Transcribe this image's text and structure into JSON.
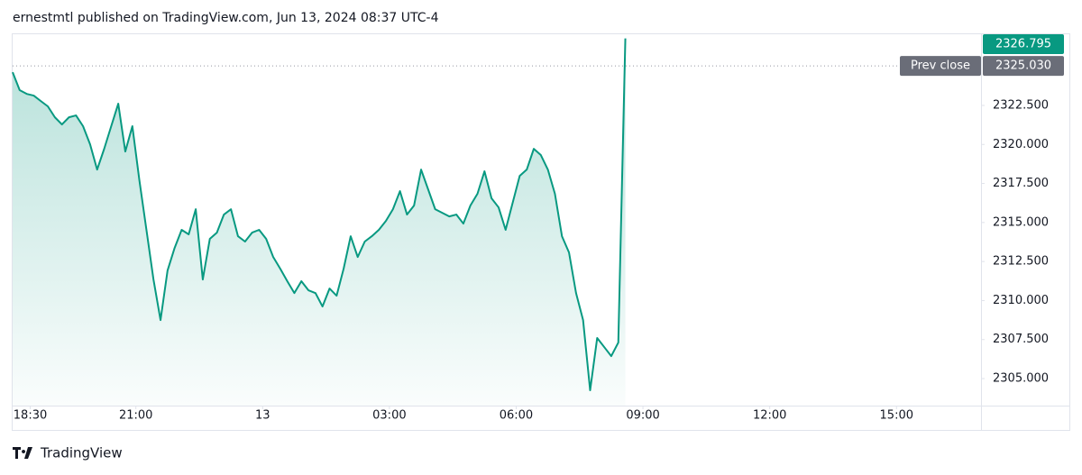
{
  "chart_data": {
    "type": "area",
    "title": "ernestmtl published on TradingView.com, Jun 13, 2024 08:37 UTC-4",
    "color": "#089981",
    "x": [
      "18:05",
      "18:15",
      "18:25",
      "18:35",
      "18:45",
      "18:55",
      "19:05",
      "19:15",
      "19:25",
      "19:35",
      "19:45",
      "19:55",
      "20:05",
      "20:15",
      "20:25",
      "20:35",
      "20:45",
      "20:55",
      "21:05",
      "21:15",
      "21:25",
      "21:35",
      "21:45",
      "21:55",
      "22:05",
      "22:15",
      "22:25",
      "22:35",
      "22:45",
      "22:55",
      "23:05",
      "23:15",
      "23:25",
      "23:35",
      "23:45",
      "23:55",
      "00:05",
      "00:15",
      "00:25",
      "00:35",
      "00:45",
      "00:55",
      "01:05",
      "01:15",
      "01:25",
      "01:35",
      "01:45",
      "01:55",
      "02:05",
      "02:15",
      "02:25",
      "02:35",
      "02:45",
      "02:55",
      "03:05",
      "03:15",
      "03:25",
      "03:35",
      "03:45",
      "03:55",
      "04:05",
      "04:15",
      "04:25",
      "04:35",
      "04:45",
      "04:55",
      "05:05",
      "05:15",
      "05:25",
      "05:35",
      "05:45",
      "05:55",
      "06:05",
      "06:15",
      "06:25",
      "06:35",
      "06:45",
      "06:55",
      "07:05",
      "07:15",
      "07:25",
      "07:35",
      "07:45",
      "07:55",
      "08:05",
      "08:15",
      "08:25",
      "08:35"
    ],
    "values": [
      2324.63,
      2323.48,
      2323.24,
      2323.13,
      2322.78,
      2322.44,
      2321.74,
      2321.28,
      2321.74,
      2321.86,
      2321.17,
      2320.01,
      2318.39,
      2319.72,
      2321.17,
      2322.61,
      2319.55,
      2321.17,
      2317.7,
      2314.53,
      2311.35,
      2308.75,
      2311.93,
      2313.37,
      2314.53,
      2314.24,
      2315.85,
      2311.35,
      2313.95,
      2314.35,
      2315.51,
      2315.85,
      2314.12,
      2313.78,
      2314.35,
      2314.53,
      2313.95,
      2312.79,
      2312.04,
      2311.24,
      2310.48,
      2311.24,
      2310.66,
      2310.48,
      2309.62,
      2310.77,
      2310.31,
      2312.04,
      2314.12,
      2312.79,
      2313.78,
      2314.12,
      2314.53,
      2315.1,
      2315.85,
      2317.01,
      2315.51,
      2316.09,
      2318.39,
      2317.12,
      2315.85,
      2315.62,
      2315.39,
      2315.51,
      2314.93,
      2316.09,
      2316.84,
      2318.28,
      2316.55,
      2315.97,
      2314.53,
      2316.26,
      2317.99,
      2318.39,
      2319.72,
      2319.32,
      2318.39,
      2316.84,
      2314.12,
      2313.08,
      2310.48,
      2308.75,
      2304.25,
      2307.6,
      2307.02,
      2306.44,
      2307.31,
      2326.795
    ],
    "xlim": [
      "18:05",
      "17:00"
    ],
    "xticks": [
      "18:30",
      "21:00",
      {
        "value": "00:00",
        "label": "13"
      },
      "03:00",
      "06:00",
      "09:00",
      "12:00",
      "15:00"
    ],
    "ylim": [
      2303.27,
      2327.06
    ],
    "yticks": [
      {
        "value": 2305,
        "label": "2305.000"
      },
      {
        "value": 2307.5,
        "label": "2307.500"
      },
      {
        "value": 2310,
        "label": "2310.000"
      },
      {
        "value": 2312.5,
        "label": "2312.500"
      },
      {
        "value": 2315,
        "label": "2315.000"
      },
      {
        "value": 2317.5,
        "label": "2317.500"
      },
      {
        "value": 2320,
        "label": "2320.000"
      },
      {
        "value": 2322.5,
        "label": "2322.500"
      }
    ],
    "last_price": {
      "value": 2326.795,
      "label": "2326.795"
    },
    "prev_close": {
      "name": "Prev close",
      "value": 2325.03,
      "label": "2325.030"
    }
  },
  "footer": {
    "brand": "TradingView"
  }
}
